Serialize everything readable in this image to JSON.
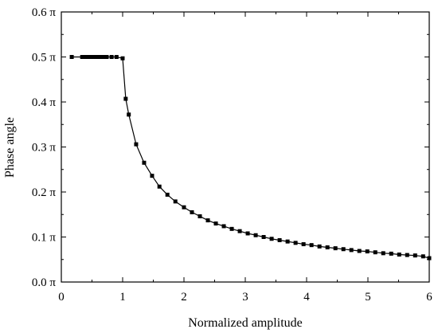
{
  "chart_data": {
    "type": "line",
    "xlabel": "Normalized amplitude",
    "ylabel": "Phase angle",
    "xlim": [
      0,
      6
    ],
    "ylim": [
      0,
      0.6
    ],
    "x_ticks": [
      {
        "value": 0,
        "label": "0"
      },
      {
        "value": 1,
        "label": "1"
      },
      {
        "value": 2,
        "label": "2"
      },
      {
        "value": 3,
        "label": "3"
      },
      {
        "value": 4,
        "label": "4"
      },
      {
        "value": 5,
        "label": "5"
      },
      {
        "value": 6,
        "label": "6"
      }
    ],
    "y_ticks": [
      {
        "value": 0.0,
        "label": "0.0 π"
      },
      {
        "value": 0.1,
        "label": "0.1 π"
      },
      {
        "value": 0.2,
        "label": "0.2 π"
      },
      {
        "value": 0.3,
        "label": "0.3 π"
      },
      {
        "value": 0.4,
        "label": "0.4 π"
      },
      {
        "value": 0.5,
        "label": "0.5 π"
      },
      {
        "value": 0.6,
        "label": "0.6 π"
      }
    ],
    "grid": false,
    "marker": "square",
    "line_color": "#000000",
    "series": [
      {
        "x": [
          0.17,
          0.34,
          0.37,
          0.4,
          0.43,
          0.46,
          0.49,
          0.52,
          0.55,
          0.58,
          0.61,
          0.64,
          0.67,
          0.7,
          0.74,
          0.82,
          0.9,
          1.0,
          1.05,
          1.1,
          1.22,
          1.35,
          1.48,
          1.6,
          1.73,
          1.86,
          2.0,
          2.13,
          2.26,
          2.39,
          2.52,
          2.65,
          2.78,
          2.91,
          3.04,
          3.17,
          3.3,
          3.43,
          3.56,
          3.69,
          3.82,
          3.95,
          4.08,
          4.21,
          4.34,
          4.47,
          4.6,
          4.73,
          4.86,
          4.99,
          5.12,
          5.25,
          5.38,
          5.51,
          5.64,
          5.77,
          5.9,
          6.0
        ],
        "y": [
          0.5,
          0.5,
          0.5,
          0.5,
          0.5,
          0.5,
          0.5,
          0.5,
          0.5,
          0.5,
          0.5,
          0.5,
          0.5,
          0.5,
          0.5,
          0.5,
          0.5,
          0.497,
          0.407,
          0.372,
          0.306,
          0.265,
          0.236,
          0.212,
          0.194,
          0.179,
          0.166,
          0.155,
          0.146,
          0.137,
          0.13,
          0.124,
          0.118,
          0.113,
          0.108,
          0.104,
          0.1,
          0.096,
          0.093,
          0.09,
          0.087,
          0.084,
          0.082,
          0.079,
          0.077,
          0.075,
          0.073,
          0.071,
          0.069,
          0.068,
          0.066,
          0.064,
          0.063,
          0.061,
          0.06,
          0.059,
          0.057,
          0.053
        ]
      }
    ]
  }
}
